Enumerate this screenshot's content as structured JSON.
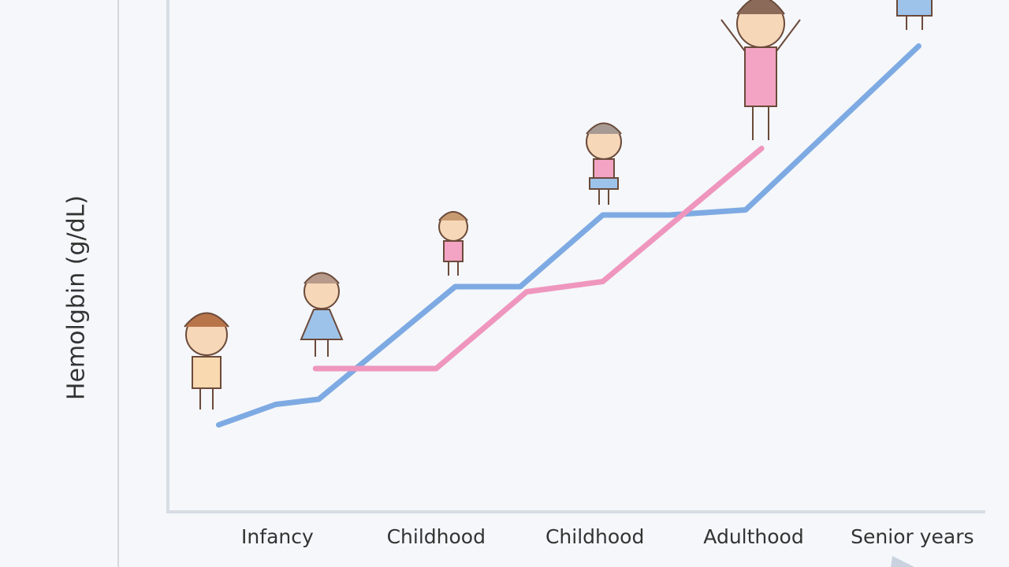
{
  "chart_data": {
    "type": "line",
    "y_label": "Hemolgbin (g/dL)",
    "categories": [
      "Infancy",
      "Childhood",
      "Childhood",
      "Adulthood",
      "Senior years"
    ],
    "xlim": [
      -0.68,
      4.46
    ],
    "ylim": [
      0,
      100
    ],
    "series": [
      {
        "color": "#7eaae3",
        "x": [
          -0.37,
          -0.01,
          0.26,
          1.12,
          1.53,
          2.05,
          2.47,
          2.95,
          4.04
        ],
        "values": [
          17,
          21,
          22,
          44,
          44,
          58,
          58,
          59,
          91
        ]
      },
      {
        "color": "#ef96be",
        "x": [
          0.24,
          1.0,
          1.57,
          2.05,
          3.05
        ],
        "values": [
          28,
          28,
          43,
          45,
          71
        ]
      }
    ]
  }
}
